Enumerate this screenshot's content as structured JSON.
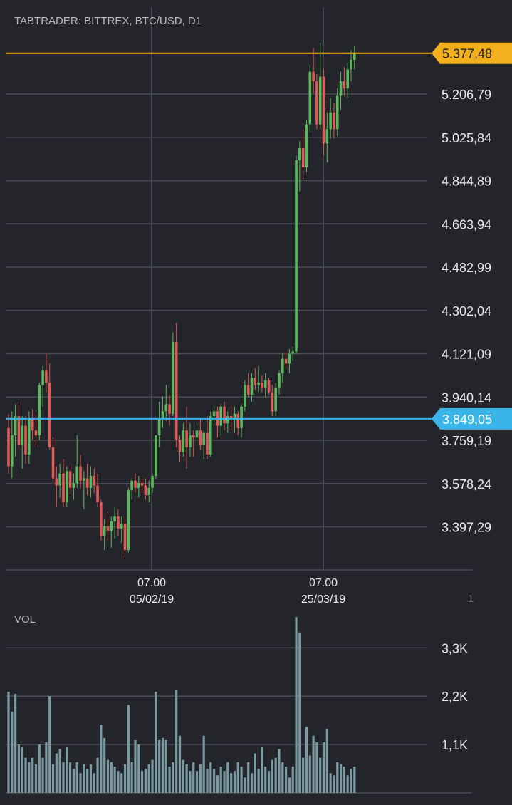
{
  "header": {
    "title": "TABTRADER: BITTREX, BTC/USD, D1"
  },
  "colors": {
    "background": "#24252b",
    "grid": "#4a4c54",
    "up": "#5cb85c",
    "down": "#e05a5a",
    "volume": "#7a9ba4",
    "last_price_marker": "#f2b01e",
    "cursor_marker": "#39b5e8",
    "text": "#eaeaea",
    "muted_text": "#b8b8bd"
  },
  "price_panel": {
    "y_tick_labels": [
      "5.206,79",
      "5.025,84",
      "4.844,89",
      "4.663,94",
      "4.482,99",
      "4.302,04",
      "4.121,09",
      "3.940,14",
      "3.759,19",
      "3.578,24",
      "3.397,29"
    ],
    "x_tick_labels": [
      {
        "time": "07.00",
        "date": "05/02/19"
      },
      {
        "time": "07.00",
        "date": "25/03/19"
      }
    ],
    "right_scale_partial_label": "1",
    "last_price": {
      "value": 5377.48,
      "label": "5.377,48"
    },
    "cursor_price": {
      "value": 3849.05,
      "label": "3.849,05"
    }
  },
  "volume_panel": {
    "label": "VOL",
    "y_tick_labels": [
      "3,3K",
      "2,2K",
      "1,1K"
    ]
  },
  "chart_data": {
    "type": "candlestick",
    "symbol": "BTC/USD",
    "exchange": "BITTREX",
    "timeframe": "D1",
    "ylim": [
      3220,
      5460
    ],
    "yticks": [
      5206.79,
      5025.84,
      4844.89,
      4663.94,
      4482.99,
      4302.04,
      4121.09,
      3940.14,
      3759.19,
      3578.24,
      3397.29
    ],
    "volume_ylim": [
      0,
      4100
    ],
    "volume_yticks": [
      3300,
      2200,
      1100
    ],
    "candles": [
      [
        3810,
        3870,
        3620,
        3650,
        2300
      ],
      [
        3650,
        3880,
        3600,
        3780,
        1850
      ],
      [
        3780,
        3910,
        3690,
        3860,
        2250
      ],
      [
        3860,
        3920,
        3720,
        3740,
        1100
      ],
      [
        3740,
        3860,
        3640,
        3820,
        1050
      ],
      [
        3820,
        3860,
        3660,
        3700,
        800
      ],
      [
        3700,
        3880,
        3660,
        3850,
        700
      ],
      [
        3850,
        3890,
        3760,
        3800,
        800
      ],
      [
        3800,
        3870,
        3730,
        3780,
        650
      ],
      [
        3780,
        4000,
        3760,
        3990,
        1100
      ],
      [
        3990,
        4070,
        3900,
        4050,
        800
      ],
      [
        4050,
        4120,
        3960,
        4000,
        1150
      ],
      [
        4000,
        4080,
        3720,
        3730,
        2200
      ],
      [
        3730,
        3770,
        3580,
        3600,
        650
      ],
      [
        3600,
        3650,
        3480,
        3570,
        900
      ],
      [
        3570,
        3660,
        3520,
        3620,
        1000
      ],
      [
        3620,
        3680,
        3480,
        3500,
        700
      ],
      [
        3500,
        3650,
        3480,
        3630,
        1050
      ],
      [
        3630,
        3660,
        3530,
        3560,
        700
      ],
      [
        3560,
        3620,
        3510,
        3580,
        550
      ],
      [
        3580,
        3780,
        3560,
        3650,
        700
      ],
      [
        3650,
        3700,
        3560,
        3590,
        450
      ],
      [
        3590,
        3630,
        3470,
        3600,
        650
      ],
      [
        3600,
        3660,
        3530,
        3560,
        550
      ],
      [
        3560,
        3650,
        3520,
        3610,
        650
      ],
      [
        3610,
        3640,
        3540,
        3570,
        450
      ],
      [
        3570,
        3620,
        3480,
        3500,
        800
      ],
      [
        3500,
        3510,
        3340,
        3360,
        1550
      ],
      [
        3360,
        3430,
        3300,
        3400,
        1250
      ],
      [
        3400,
        3460,
        3340,
        3380,
        750
      ],
      [
        3380,
        3440,
        3310,
        3420,
        700
      ],
      [
        3420,
        3480,
        3350,
        3440,
        600
      ],
      [
        3440,
        3470,
        3360,
        3390,
        500
      ],
      [
        3390,
        3440,
        3330,
        3410,
        450
      ],
      [
        3410,
        3440,
        3270,
        3300,
        650
      ],
      [
        3300,
        3560,
        3290,
        3550,
        2000
      ],
      [
        3550,
        3600,
        3510,
        3590,
        700
      ],
      [
        3590,
        3620,
        3540,
        3560,
        1200
      ],
      [
        3560,
        3610,
        3520,
        3580,
        1100
      ],
      [
        3580,
        3610,
        3540,
        3570,
        500
      ],
      [
        3570,
        3600,
        3510,
        3530,
        550
      ],
      [
        3530,
        3590,
        3500,
        3560,
        650
      ],
      [
        3560,
        3620,
        3540,
        3610,
        750
      ],
      [
        3610,
        3780,
        3600,
        3780,
        2300
      ],
      [
        3780,
        3920,
        3730,
        3850,
        1200
      ],
      [
        3850,
        3940,
        3810,
        3880,
        1250
      ],
      [
        3880,
        3990,
        3840,
        3910,
        1200
      ],
      [
        3910,
        3950,
        3820,
        3870,
        600
      ],
      [
        3870,
        4210,
        3860,
        4170,
        700
      ],
      [
        4170,
        4250,
        3730,
        3760,
        2350
      ],
      [
        3760,
        3780,
        3670,
        3710,
        1300
      ],
      [
        3710,
        3830,
        3690,
        3800,
        750
      ],
      [
        3800,
        3900,
        3640,
        3730,
        650
      ],
      [
        3730,
        3830,
        3690,
        3780,
        500
      ],
      [
        3780,
        3800,
        3690,
        3770,
        700
      ],
      [
        3770,
        3830,
        3740,
        3800,
        500
      ],
      [
        3800,
        3850,
        3720,
        3740,
        650
      ],
      [
        3740,
        3800,
        3680,
        3790,
        1300
      ],
      [
        3790,
        3860,
        3680,
        3700,
        550
      ],
      [
        3700,
        3880,
        3690,
        3860,
        700
      ],
      [
        3860,
        3900,
        3820,
        3880,
        550
      ],
      [
        3880,
        3900,
        3770,
        3820,
        400
      ],
      [
        3820,
        3910,
        3780,
        3900,
        600
      ],
      [
        3900,
        3920,
        3800,
        3830,
        500
      ],
      [
        3830,
        3880,
        3790,
        3860,
        700
      ],
      [
        3860,
        3900,
        3800,
        3850,
        450
      ],
      [
        3850,
        3900,
        3790,
        3870,
        500
      ],
      [
        3870,
        3880,
        3780,
        3810,
        700
      ],
      [
        3810,
        3910,
        3770,
        3900,
        600
      ],
      [
        3900,
        4010,
        3880,
        3990,
        350
      ],
      [
        3990,
        4040,
        3940,
        3950,
        700
      ],
      [
        3950,
        4040,
        3920,
        4020,
        450
      ],
      [
        4020,
        4060,
        3970,
        3990,
        900
      ],
      [
        3990,
        4070,
        3960,
        4000,
        550
      ],
      [
        4000,
        4030,
        3960,
        3980,
        1050
      ],
      [
        3980,
        4040,
        3940,
        4010,
        600
      ],
      [
        4010,
        4020,
        3950,
        3960,
        500
      ],
      [
        3960,
        3990,
        3860,
        3880,
        750
      ],
      [
        3880,
        4000,
        3860,
        3980,
        800
      ],
      [
        3980,
        4050,
        3950,
        4040,
        1000
      ],
      [
        4040,
        4120,
        4000,
        4100,
        700
      ],
      [
        4100,
        4130,
        4060,
        4080,
        600
      ],
      [
        4080,
        4140,
        4040,
        4120,
        350
      ],
      [
        4120,
        4150,
        4090,
        4130,
        600
      ],
      [
        4130,
        4950,
        4120,
        4930,
        4000
      ],
      [
        4930,
        5010,
        4800,
        4980,
        3650
      ],
      [
        4980,
        5060,
        4850,
        4900,
        800
      ],
      [
        4900,
        5100,
        4880,
        5080,
        1500
      ],
      [
        5080,
        5330,
        5050,
        5300,
        850
      ],
      [
        5300,
        5400,
        5210,
        5260,
        1300
      ],
      [
        5260,
        5290,
        5060,
        5080,
        1150
      ],
      [
        5080,
        5420,
        5060,
        5280,
        800
      ],
      [
        5280,
        5310,
        4950,
        5000,
        1150
      ],
      [
        5000,
        5130,
        4920,
        5060,
        1450
      ],
      [
        5060,
        5190,
        5020,
        5130,
        450
      ],
      [
        5130,
        5170,
        5020,
        5060,
        400
      ],
      [
        5060,
        5230,
        5030,
        5200,
        700
      ],
      [
        5200,
        5300,
        5140,
        5260,
        650
      ],
      [
        5260,
        5320,
        5200,
        5230,
        600
      ],
      [
        5230,
        5340,
        5190,
        5310,
        400
      ],
      [
        5310,
        5390,
        5260,
        5350,
        550
      ],
      [
        5350,
        5410,
        5310,
        5377.48,
        600
      ]
    ]
  }
}
